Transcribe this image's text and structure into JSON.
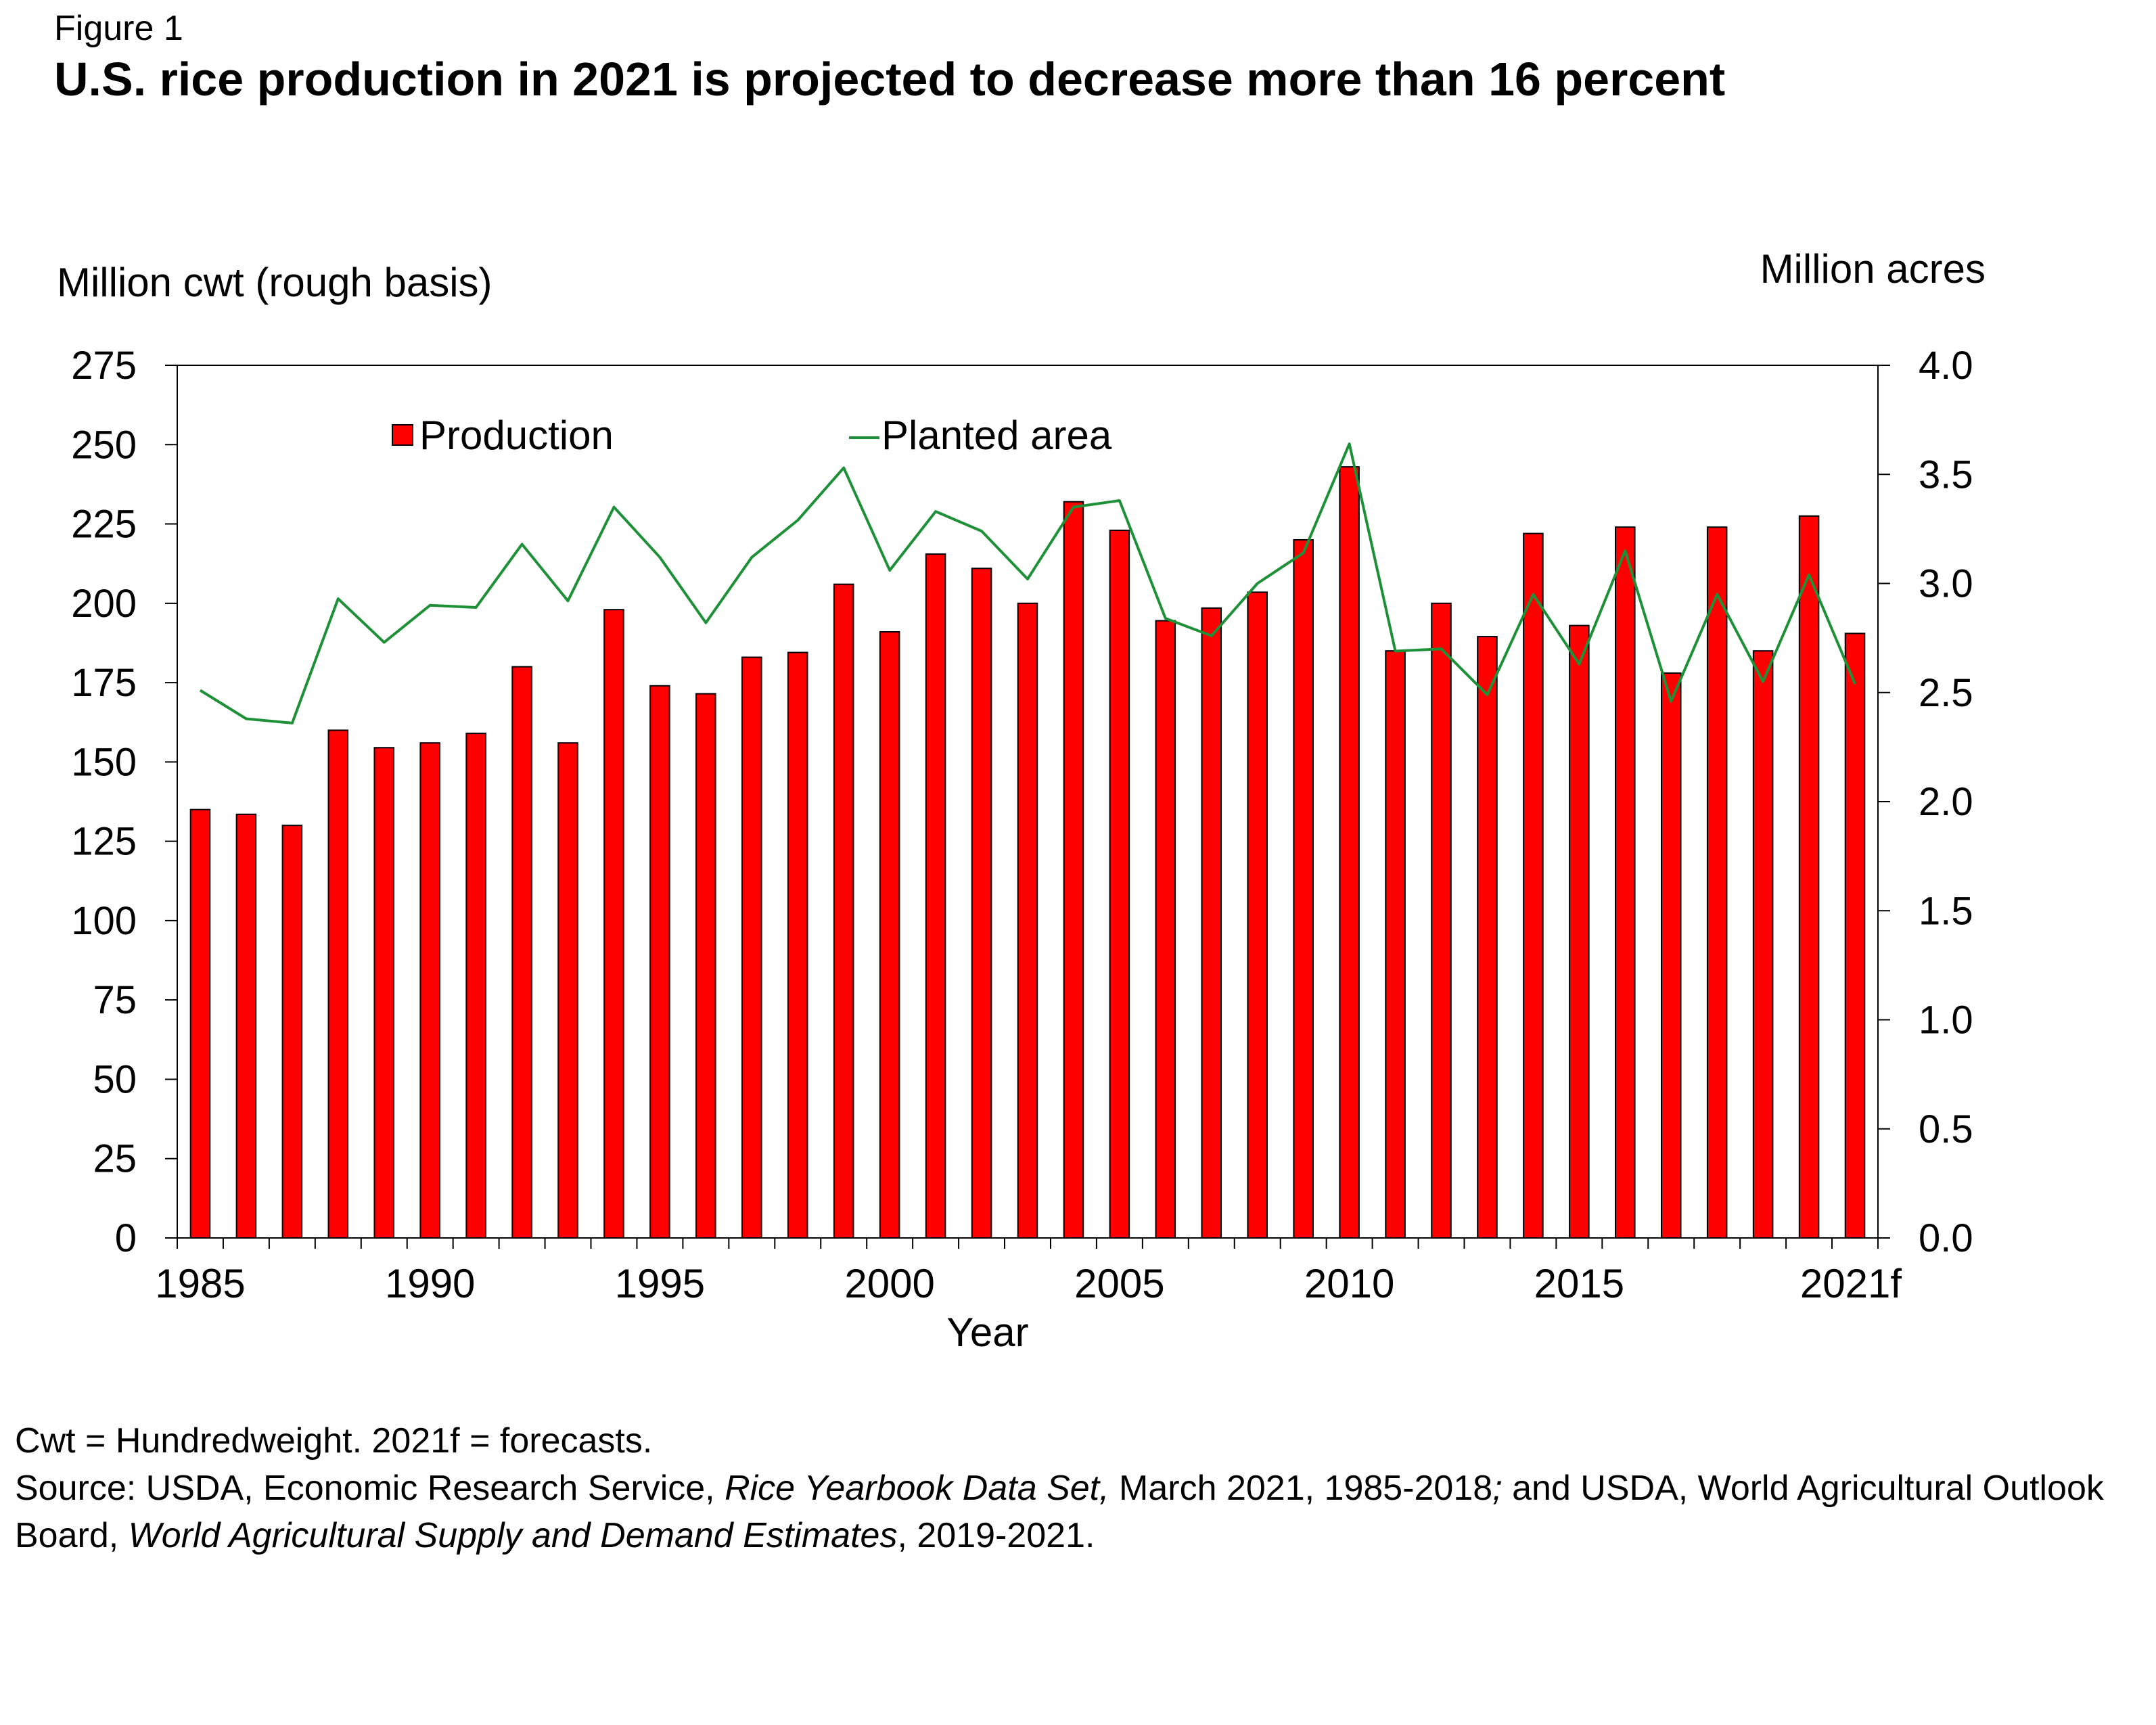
{
  "figure_label": "Figure 1",
  "title": "U.S. rice production in 2021 is projected to decrease more than 16 percent",
  "footnote": {
    "line1": "Cwt = Hundredweight.  2021f = forecasts.",
    "source_prefix": "Source: USDA, Economic Research Service, ",
    "source_italic_1": "Rice Yearbook Data Set,",
    "source_mid": " March 2021, 1985-2018",
    "source_semicolon": ";",
    "source_mid2": " and USDA, World Agricultural Outlook Board, ",
    "source_italic_2": "World Agricultural Supply and Demand Estimates",
    "source_end": ", 2019-2021."
  },
  "chart_data": {
    "type": "bar",
    "title": "U.S. rice production in 2021 is projected to decrease more than 16 percent",
    "xlabel": "Year",
    "ylabel_left": "Million cwt (rough basis)",
    "ylabel_right": "Million acres",
    "ylim_left": [
      0,
      275
    ],
    "ylim_right": [
      0.0,
      4.0
    ],
    "yticks_left": [
      "0",
      "25",
      "50",
      "75",
      "100",
      "125",
      "150",
      "175",
      "200",
      "225",
      "250",
      "275"
    ],
    "yticks_right": [
      "0.0",
      "0.5",
      "1.0",
      "1.5",
      "2.0",
      "2.5",
      "3.0",
      "3.5",
      "4.0"
    ],
    "categories": [
      "1985",
      "1986",
      "1987",
      "1988",
      "1989",
      "1990",
      "1991",
      "1992",
      "1993",
      "1994",
      "1995",
      "1996",
      "1997",
      "1998",
      "1999",
      "2000",
      "2001",
      "2002",
      "2003",
      "2004",
      "2005",
      "2006",
      "2007",
      "2008",
      "2009",
      "2010",
      "2011",
      "2012",
      "2013",
      "2014",
      "2015",
      "2016",
      "2017",
      "2018",
      "2019",
      "2020",
      "2021f"
    ],
    "xtick_labels": [
      "1985",
      "1990",
      "1995",
      "2000",
      "2005",
      "2010",
      "2015",
      "2021f"
    ],
    "series": [
      {
        "name": "Production",
        "kind": "bar",
        "axis": "left",
        "color": "#ff0000",
        "values": [
          135,
          133.5,
          130,
          160,
          154.5,
          156,
          159,
          180,
          156,
          198,
          174,
          171.5,
          183,
          184.5,
          206,
          191,
          215.5,
          211,
          200,
          232,
          223,
          194.5,
          198.5,
          203.5,
          220,
          243,
          185,
          200,
          189.5,
          222,
          193,
          224,
          178,
          224,
          185,
          227.5,
          190.5
        ]
      },
      {
        "name": "Planted area",
        "kind": "line",
        "axis": "right",
        "color": "#1e9138",
        "values": [
          2.51,
          2.38,
          2.36,
          2.93,
          2.73,
          2.9,
          2.89,
          3.18,
          2.92,
          3.35,
          3.12,
          2.82,
          3.12,
          3.29,
          3.53,
          3.06,
          3.33,
          3.24,
          3.02,
          3.35,
          3.38,
          2.84,
          2.76,
          3.0,
          3.14,
          3.64,
          2.69,
          2.7,
          2.49,
          2.95,
          2.63,
          3.15,
          2.46,
          2.95,
          2.55,
          3.04,
          2.54
        ]
      }
    ],
    "legend": {
      "production_label": "Production",
      "planted_label": "Planted area",
      "position": "top-center"
    },
    "bar_edge_color": "#000000"
  }
}
